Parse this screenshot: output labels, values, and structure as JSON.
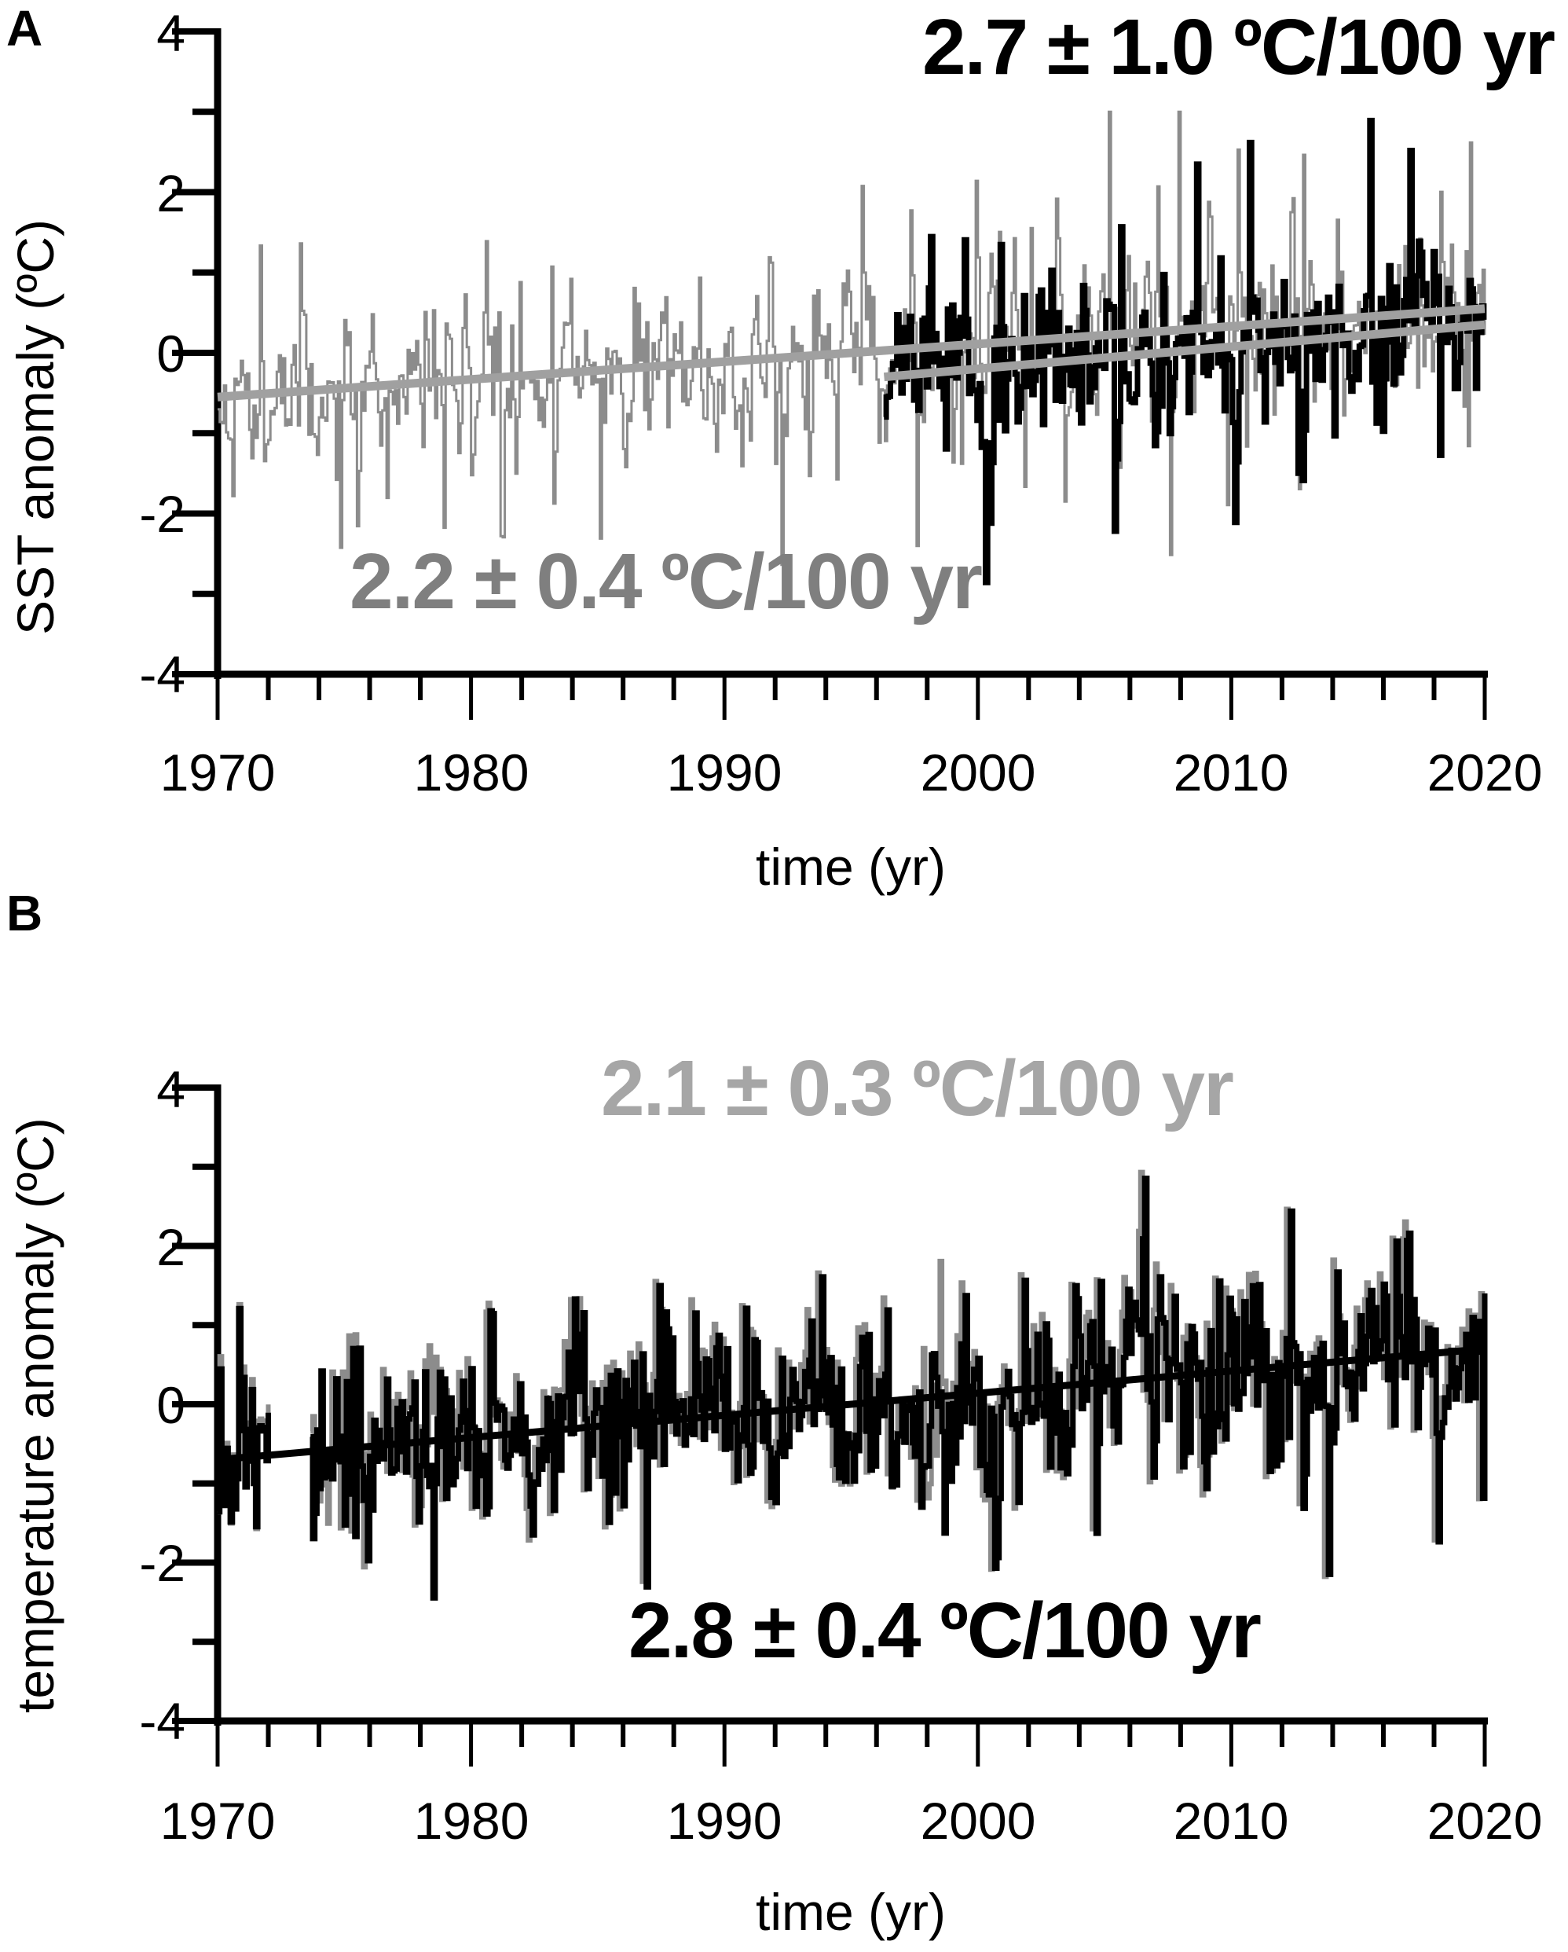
{
  "chart_data": [
    {
      "panel": "A",
      "type": "line",
      "title": "",
      "xlabel": "time (yr)",
      "ylabel": "SST anomaly (ºC)",
      "xlim": [
        1970,
        2020
      ],
      "ylim": [
        -4,
        4
      ],
      "xticks": [
        1970,
        1980,
        1990,
        2000,
        2010,
        2020
      ],
      "xtick_labels": [
        "1970",
        "1980",
        "1990",
        "2000",
        "2010",
        "2020"
      ],
      "yticks": [
        -4,
        -2,
        0,
        2,
        4
      ],
      "ytick_labels": [
        "-4",
        "-2",
        "0",
        "2",
        "4"
      ],
      "grid": false,
      "legend": null,
      "series": [
        {
          "name": "long SST record (gray)",
          "color": "#8c8c8c",
          "x_start": 1970,
          "x_end": 2020,
          "style": "thin",
          "approx_range": [
            -2.5,
            3.1
          ]
        },
        {
          "name": "short SST record (black)",
          "color": "#000000",
          "x_start": 1996.3,
          "x_end": 2020,
          "style": "thick",
          "approx_range": [
            -2.2,
            2.0
          ]
        }
      ],
      "trends": [
        {
          "name": "gray trend",
          "color": "#a0a0a0",
          "x": [
            1970,
            2020
          ],
          "y": [
            -0.55,
            0.55
          ],
          "label": "2.2 ± 0.4 ºC/100 yr"
        },
        {
          "name": "black trend",
          "color": "#a0a0a0",
          "x": [
            1996.3,
            2020
          ],
          "y": [
            -0.3,
            0.35
          ],
          "label": "2.7 ± 1.0 ºC/100 yr"
        }
      ],
      "annotations": [
        {
          "text": "2.7 ± 1.0 ºC/100 yr",
          "color": "#000000",
          "position": "top-right"
        },
        {
          "text": "2.2 ± 0.4 ºC/100 yr",
          "color": "#7f7f7f",
          "position": "lower-middle"
        }
      ]
    },
    {
      "panel": "B",
      "type": "line",
      "title": "",
      "xlabel": "time (yr)",
      "ylabel": "temperature anomaly (ºC)",
      "xlim": [
        1970,
        2020
      ],
      "ylim": [
        -4,
        4
      ],
      "xticks": [
        1970,
        1980,
        1990,
        2000,
        2010,
        2020
      ],
      "xtick_labels": [
        "1970",
        "1980",
        "1990",
        "2000",
        "2010",
        "2020"
      ],
      "yticks": [
        -4,
        -2,
        0,
        2,
        4
      ],
      "ytick_labels": [
        "-4",
        "-2",
        "0",
        "2",
        "4"
      ],
      "grid": false,
      "legend": null,
      "series": [
        {
          "name": "gray temperature record",
          "color": "#8c8c8c",
          "x_start": 1970,
          "x_end": 2020,
          "gap": [
            1972.0,
            1973.6
          ],
          "approx_range": [
            -3.3,
            2.8
          ]
        },
        {
          "name": "black temperature record",
          "color": "#000000",
          "x_start": 1970,
          "x_end": 2020,
          "gap": [
            1972.0,
            1973.6
          ],
          "approx_range": [
            -3.3,
            2.5
          ]
        }
      ],
      "trends": [
        {
          "name": "black trend",
          "color": "#000000",
          "x": [
            1970,
            2020
          ],
          "y": [
            -0.7,
            0.7
          ],
          "label": "2.8 ± 0.4 ºC/100 yr"
        }
      ],
      "annotations": [
        {
          "text": "2.1 ± 0.3 ºC/100 yr",
          "color": "#a6a6a6",
          "position": "top-middle"
        },
        {
          "text": "2.8 ± 0.4 ºC/100 yr",
          "color": "#000000",
          "position": "bottom-middle"
        }
      ]
    }
  ],
  "panels": {
    "a": {
      "label": "A",
      "ylabel": "SST anomaly (ºC)",
      "xlabel": "time (yr)",
      "annotation_black": "2.7 ± 1.0 ºC/100 yr",
      "annotation_gray": "2.2 ± 0.4 ºC/100 yr",
      "yticks": [
        "4",
        "2",
        "0",
        "-2",
        "-4"
      ],
      "xticks": [
        "1970",
        "1980",
        "1990",
        "2000",
        "2010",
        "2020"
      ]
    },
    "b": {
      "label": "B",
      "ylabel": "temperature anomaly (ºC)",
      "xlabel": "time (yr)",
      "annotation_gray": "2.1 ± 0.3 ºC/100 yr",
      "annotation_black": "2.8 ± 0.4 ºC/100 yr",
      "yticks": [
        "4",
        "2",
        "0",
        "-2",
        "-4"
      ],
      "xticks": [
        "1970",
        "1980",
        "1990",
        "2000",
        "2010",
        "2020"
      ]
    }
  },
  "colors": {
    "axis": "#000000",
    "gray_series": "#8c8c8c",
    "black_series": "#000000",
    "trend_gray": "#a0a0a0",
    "annotation_gray_a": "#7f7f7f",
    "annotation_gray_b": "#a6a6a6"
  }
}
